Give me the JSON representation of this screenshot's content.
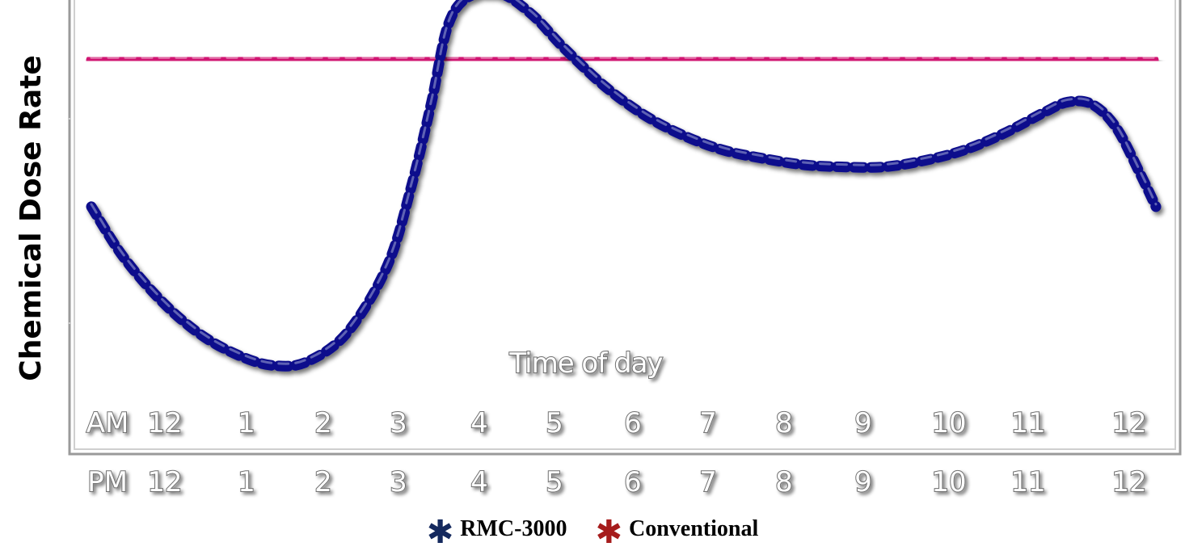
{
  "chart_data": {
    "type": "line",
    "ylabel": "Chemical Dose Rate",
    "xlabel": "Time of day",
    "am_row": [
      "AM",
      "12",
      "1",
      "2",
      "3",
      "4",
      "5",
      "6",
      "7",
      "8",
      "9",
      "10",
      "11",
      "12"
    ],
    "pm_row": [
      "PM",
      "12",
      "1",
      "2",
      "3",
      "4",
      "5",
      "6",
      "7",
      "8",
      "9",
      "10",
      "11",
      "12"
    ],
    "xlim": [
      -0.9,
      12.4
    ],
    "ylim": [
      0,
      10
    ],
    "series": [
      {
        "name": "RMC-3000",
        "color": "#0a0f8c",
        "x": [
          -0.9,
          -0.5,
          0.0,
          0.5,
          1.0,
          1.4,
          1.8,
          2.3,
          2.8,
          3.1,
          3.35,
          3.55,
          3.8,
          4.2,
          4.6,
          5.0,
          5.5,
          6.0,
          6.5,
          7.0,
          7.5,
          8.0,
          8.5,
          9.0,
          9.5,
          10.0,
          10.5,
          11.0,
          11.3,
          11.6,
          11.9,
          12.2,
          12.4
        ],
        "y": [
          5.1,
          3.9,
          2.8,
          2.0,
          1.5,
          1.3,
          1.4,
          2.1,
          3.7,
          5.6,
          7.6,
          9.4,
          10.1,
          10.2,
          9.7,
          8.9,
          8.0,
          7.3,
          6.8,
          6.45,
          6.25,
          6.1,
          6.05,
          6.05,
          6.2,
          6.45,
          6.85,
          7.35,
          7.6,
          7.55,
          7.0,
          5.9,
          5.1
        ]
      },
      {
        "name": "Conventional",
        "color": "#d01672",
        "x": [
          -0.9,
          12.4
        ],
        "y": [
          8.6,
          8.6
        ]
      }
    ]
  },
  "legend": {
    "items": [
      {
        "label": "RMC-3000",
        "star": "✱",
        "color": "#14295e"
      },
      {
        "label": "Conventional",
        "star": "✱",
        "color": "#a61c1c"
      }
    ]
  }
}
